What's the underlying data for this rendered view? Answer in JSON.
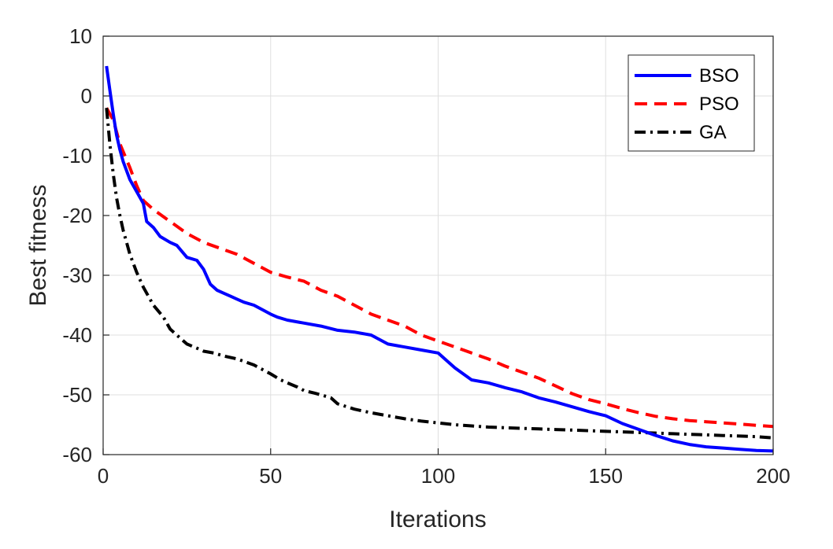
{
  "chart_data": {
    "type": "line",
    "title": "",
    "xlabel": "Iterations",
    "ylabel": "Best fitness",
    "xlim": [
      0,
      200
    ],
    "ylim": [
      -60,
      10
    ],
    "xticks": [
      0,
      50,
      100,
      150,
      200
    ],
    "yticks": [
      10,
      0,
      -10,
      -20,
      -30,
      -40,
      -50,
      -60
    ],
    "grid": true,
    "legend_position": "top-right",
    "series": [
      {
        "name": "BSO",
        "color": "#0000ff",
        "style": "solid",
        "x": [
          1,
          2,
          3,
          4,
          5,
          6,
          8,
          10,
          12,
          13,
          15,
          17,
          20,
          22,
          25,
          28,
          30,
          32,
          34,
          36,
          38,
          40,
          42,
          45,
          50,
          52,
          55,
          60,
          65,
          70,
          75,
          80,
          85,
          90,
          95,
          100,
          102,
          105,
          110,
          115,
          120,
          125,
          130,
          135,
          140,
          145,
          150,
          155,
          160,
          165,
          170,
          175,
          180,
          185,
          190,
          195,
          200
        ],
        "y": [
          5,
          1,
          -3,
          -6.5,
          -9,
          -11,
          -14,
          -16,
          -18,
          -21,
          -22,
          -23.5,
          -24.5,
          -25,
          -27,
          -27.5,
          -29,
          -31.5,
          -32.5,
          -33,
          -33.5,
          -34,
          -34.5,
          -35,
          -36.5,
          -37,
          -37.5,
          -38,
          -38.5,
          -39.2,
          -39.5,
          -40,
          -41.5,
          -42,
          -42.5,
          -43,
          -44,
          -45.5,
          -47.5,
          -48,
          -48.8,
          -49.5,
          -50.5,
          -51.2,
          -52,
          -52.8,
          -53.5,
          -54.8,
          -55.8,
          -56.8,
          -57.7,
          -58.3,
          -58.7,
          -58.9,
          -59.1,
          -59.3,
          -59.4
        ]
      },
      {
        "name": "PSO",
        "color": "#ff0000",
        "style": "dashed",
        "x": [
          1,
          3,
          5,
          8,
          10,
          12,
          15,
          20,
          25,
          30,
          35,
          40,
          45,
          50,
          55,
          60,
          65,
          70,
          75,
          80,
          85,
          90,
          95,
          100,
          105,
          110,
          115,
          120,
          125,
          130,
          135,
          140,
          145,
          150,
          155,
          160,
          165,
          170,
          175,
          180,
          185,
          190,
          195,
          200
        ],
        "y": [
          -2,
          -4,
          -8,
          -12,
          -15,
          -17.5,
          -19,
          -21,
          -23,
          -24.5,
          -25.5,
          -26.5,
          -28,
          -29.5,
          -30.3,
          -31,
          -32.5,
          -33.5,
          -35,
          -36.5,
          -37.5,
          -38.5,
          -40,
          -41,
          -42,
          -43,
          -44,
          -45.2,
          -46.2,
          -47.2,
          -48.5,
          -49.8,
          -50.8,
          -51.5,
          -52.3,
          -53,
          -53.6,
          -54,
          -54.3,
          -54.5,
          -54.7,
          -54.9,
          -55.1,
          -55.3
        ]
      },
      {
        "name": "GA",
        "color": "#000000",
        "style": "dashdot",
        "x": [
          1,
          2,
          3,
          4,
          5,
          6,
          7,
          8,
          10,
          12,
          15,
          18,
          20,
          22,
          25,
          28,
          30,
          33,
          36,
          40,
          43,
          45,
          50,
          53,
          55,
          58,
          60,
          63,
          65,
          68,
          70,
          75,
          80,
          85,
          90,
          95,
          100,
          105,
          110,
          115,
          120,
          125,
          130,
          135,
          140,
          145,
          150,
          155,
          160,
          165,
          170,
          175,
          180,
          185,
          190,
          195,
          200
        ],
        "y": [
          -2,
          -8,
          -13,
          -17,
          -20,
          -22.5,
          -24.5,
          -26.5,
          -29.5,
          -32,
          -35,
          -37,
          -39,
          -40,
          -41.5,
          -42.2,
          -42.7,
          -43,
          -43.5,
          -44,
          -44.6,
          -45,
          -46.5,
          -47.5,
          -48,
          -48.7,
          -49.3,
          -49.7,
          -50,
          -50.5,
          -51.5,
          -52.4,
          -53,
          -53.5,
          -54,
          -54.4,
          -54.7,
          -55,
          -55.2,
          -55.4,
          -55.5,
          -55.6,
          -55.7,
          -55.8,
          -55.9,
          -56,
          -56.1,
          -56.2,
          -56.3,
          -56.4,
          -56.5,
          -56.6,
          -56.7,
          -56.8,
          -56.9,
          -57,
          -57.2
        ]
      }
    ]
  }
}
